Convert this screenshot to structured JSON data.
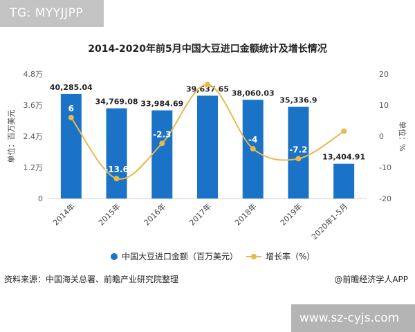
{
  "watermark": "TG: MYYJJPP",
  "site_tag": "www.sz-cyjs.com",
  "footer": {
    "source": "资料来源：中国海关总署、前瞻产业研究院整理",
    "credit": "@前瞻经济学人APP"
  },
  "legend": {
    "bar_label": "中国大豆进口金额（百万美元）",
    "line_label": "增长率（%）"
  },
  "colors": {
    "bar": "#1a73c6",
    "line": "#e8b84a"
  },
  "chart_data": {
    "type": "bar",
    "title": "2014-2020年前5月中国大豆进口金额统计及增长情况",
    "categories": [
      "2014年",
      "2015年",
      "2016年",
      "2017年",
      "2018年",
      "2019年",
      "2020年1-5月"
    ],
    "ylabel_left": "单位：百万美元",
    "ylabel_right": "单位：%",
    "y_left_ticks": [
      "0",
      "1.2万",
      "2.4万",
      "3.6万",
      "4.8万"
    ],
    "y_left_tick_values": [
      0,
      12000,
      24000,
      36000,
      48000
    ],
    "y_left_range": [
      0,
      48000
    ],
    "y_right_ticks": [
      "-20",
      "-10",
      "0",
      "10",
      "20"
    ],
    "y_right_tick_values": [
      -20,
      -10,
      0,
      10,
      20
    ],
    "y_right_range": [
      -20,
      20
    ],
    "legend_position": "bottom",
    "series": [
      {
        "name": "中国大豆进口金额（百万美元）",
        "type": "bar",
        "values": [
          40285.04,
          34769.08,
          33984.69,
          39637.65,
          38060.03,
          35336.9,
          13404.91
        ],
        "labels": [
          "40,285.04",
          "34,769.08",
          "33,984.69",
          "39,637.65",
          "38,060.03",
          "35,336.9",
          "13,404.91"
        ]
      },
      {
        "name": "增长率（%）",
        "type": "line",
        "values": [
          6,
          -13.6,
          -2.3,
          16.6,
          -4,
          -7.2,
          1.6
        ],
        "labels": [
          "6",
          "-13.6",
          "-2.3",
          "",
          "-4",
          "-7.2",
          "1.6"
        ]
      }
    ]
  }
}
